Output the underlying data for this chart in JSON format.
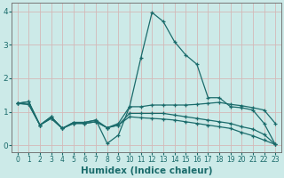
{
  "xlabel": "Humidex (Indice chaleur)",
  "xlim": [
    -0.5,
    23.5
  ],
  "ylim": [
    -0.2,
    4.25
  ],
  "bg_color": "#cceae8",
  "grid_color_v": "#d4b8b8",
  "grid_color_h": "#d4b8b8",
  "line_color": "#1a6b6b",
  "series": [
    {
      "x": [
        0,
        1,
        2,
        3,
        4,
        5,
        6,
        7,
        8,
        9,
        10,
        11,
        12,
        13,
        14,
        15,
        16,
        17,
        18,
        19,
        20,
        21,
        22,
        23
      ],
      "y": [
        1.25,
        1.3,
        0.6,
        0.85,
        0.5,
        0.68,
        0.68,
        0.75,
        0.05,
        0.3,
        1.15,
        2.6,
        3.97,
        3.7,
        3.1,
        2.7,
        2.42,
        1.42,
        1.42,
        1.15,
        1.12,
        1.05,
        0.65,
        0.02
      ]
    },
    {
      "x": [
        0,
        1,
        2,
        3,
        4,
        5,
        6,
        7,
        8,
        9,
        10,
        11,
        12,
        13,
        14,
        15,
        16,
        17,
        18,
        19,
        20,
        21,
        22,
        23
      ],
      "y": [
        1.25,
        1.3,
        0.6,
        0.85,
        0.5,
        0.68,
        0.68,
        0.75,
        0.52,
        0.65,
        1.15,
        1.15,
        1.2,
        1.2,
        1.2,
        1.2,
        1.22,
        1.25,
        1.28,
        1.22,
        1.18,
        1.12,
        1.05,
        0.65
      ]
    },
    {
      "x": [
        0,
        1,
        2,
        3,
        4,
        5,
        6,
        7,
        8,
        9,
        10,
        11,
        12,
        13,
        14,
        15,
        16,
        17,
        18,
        19,
        20,
        21,
        22,
        23
      ],
      "y": [
        1.25,
        1.22,
        0.6,
        0.8,
        0.5,
        0.65,
        0.65,
        0.7,
        0.52,
        0.6,
        0.95,
        0.95,
        0.95,
        0.95,
        0.9,
        0.85,
        0.8,
        0.75,
        0.7,
        0.65,
        0.55,
        0.48,
        0.32,
        0.02
      ]
    },
    {
      "x": [
        0,
        1,
        2,
        3,
        4,
        5,
        6,
        7,
        8,
        9,
        10,
        11,
        12,
        13,
        14,
        15,
        16,
        17,
        18,
        19,
        20,
        21,
        22,
        23
      ],
      "y": [
        1.25,
        1.22,
        0.6,
        0.8,
        0.5,
        0.65,
        0.65,
        0.7,
        0.52,
        0.6,
        0.85,
        0.82,
        0.8,
        0.78,
        0.75,
        0.7,
        0.65,
        0.6,
        0.55,
        0.5,
        0.38,
        0.28,
        0.15,
        0.02
      ]
    }
  ],
  "xticks": [
    0,
    1,
    2,
    3,
    4,
    5,
    6,
    7,
    8,
    9,
    10,
    11,
    12,
    13,
    14,
    15,
    16,
    17,
    18,
    19,
    20,
    21,
    22,
    23
  ],
  "yticks": [
    0,
    1,
    2,
    3,
    4
  ],
  "tick_fontsize": 5.5,
  "label_fontsize": 7.5
}
